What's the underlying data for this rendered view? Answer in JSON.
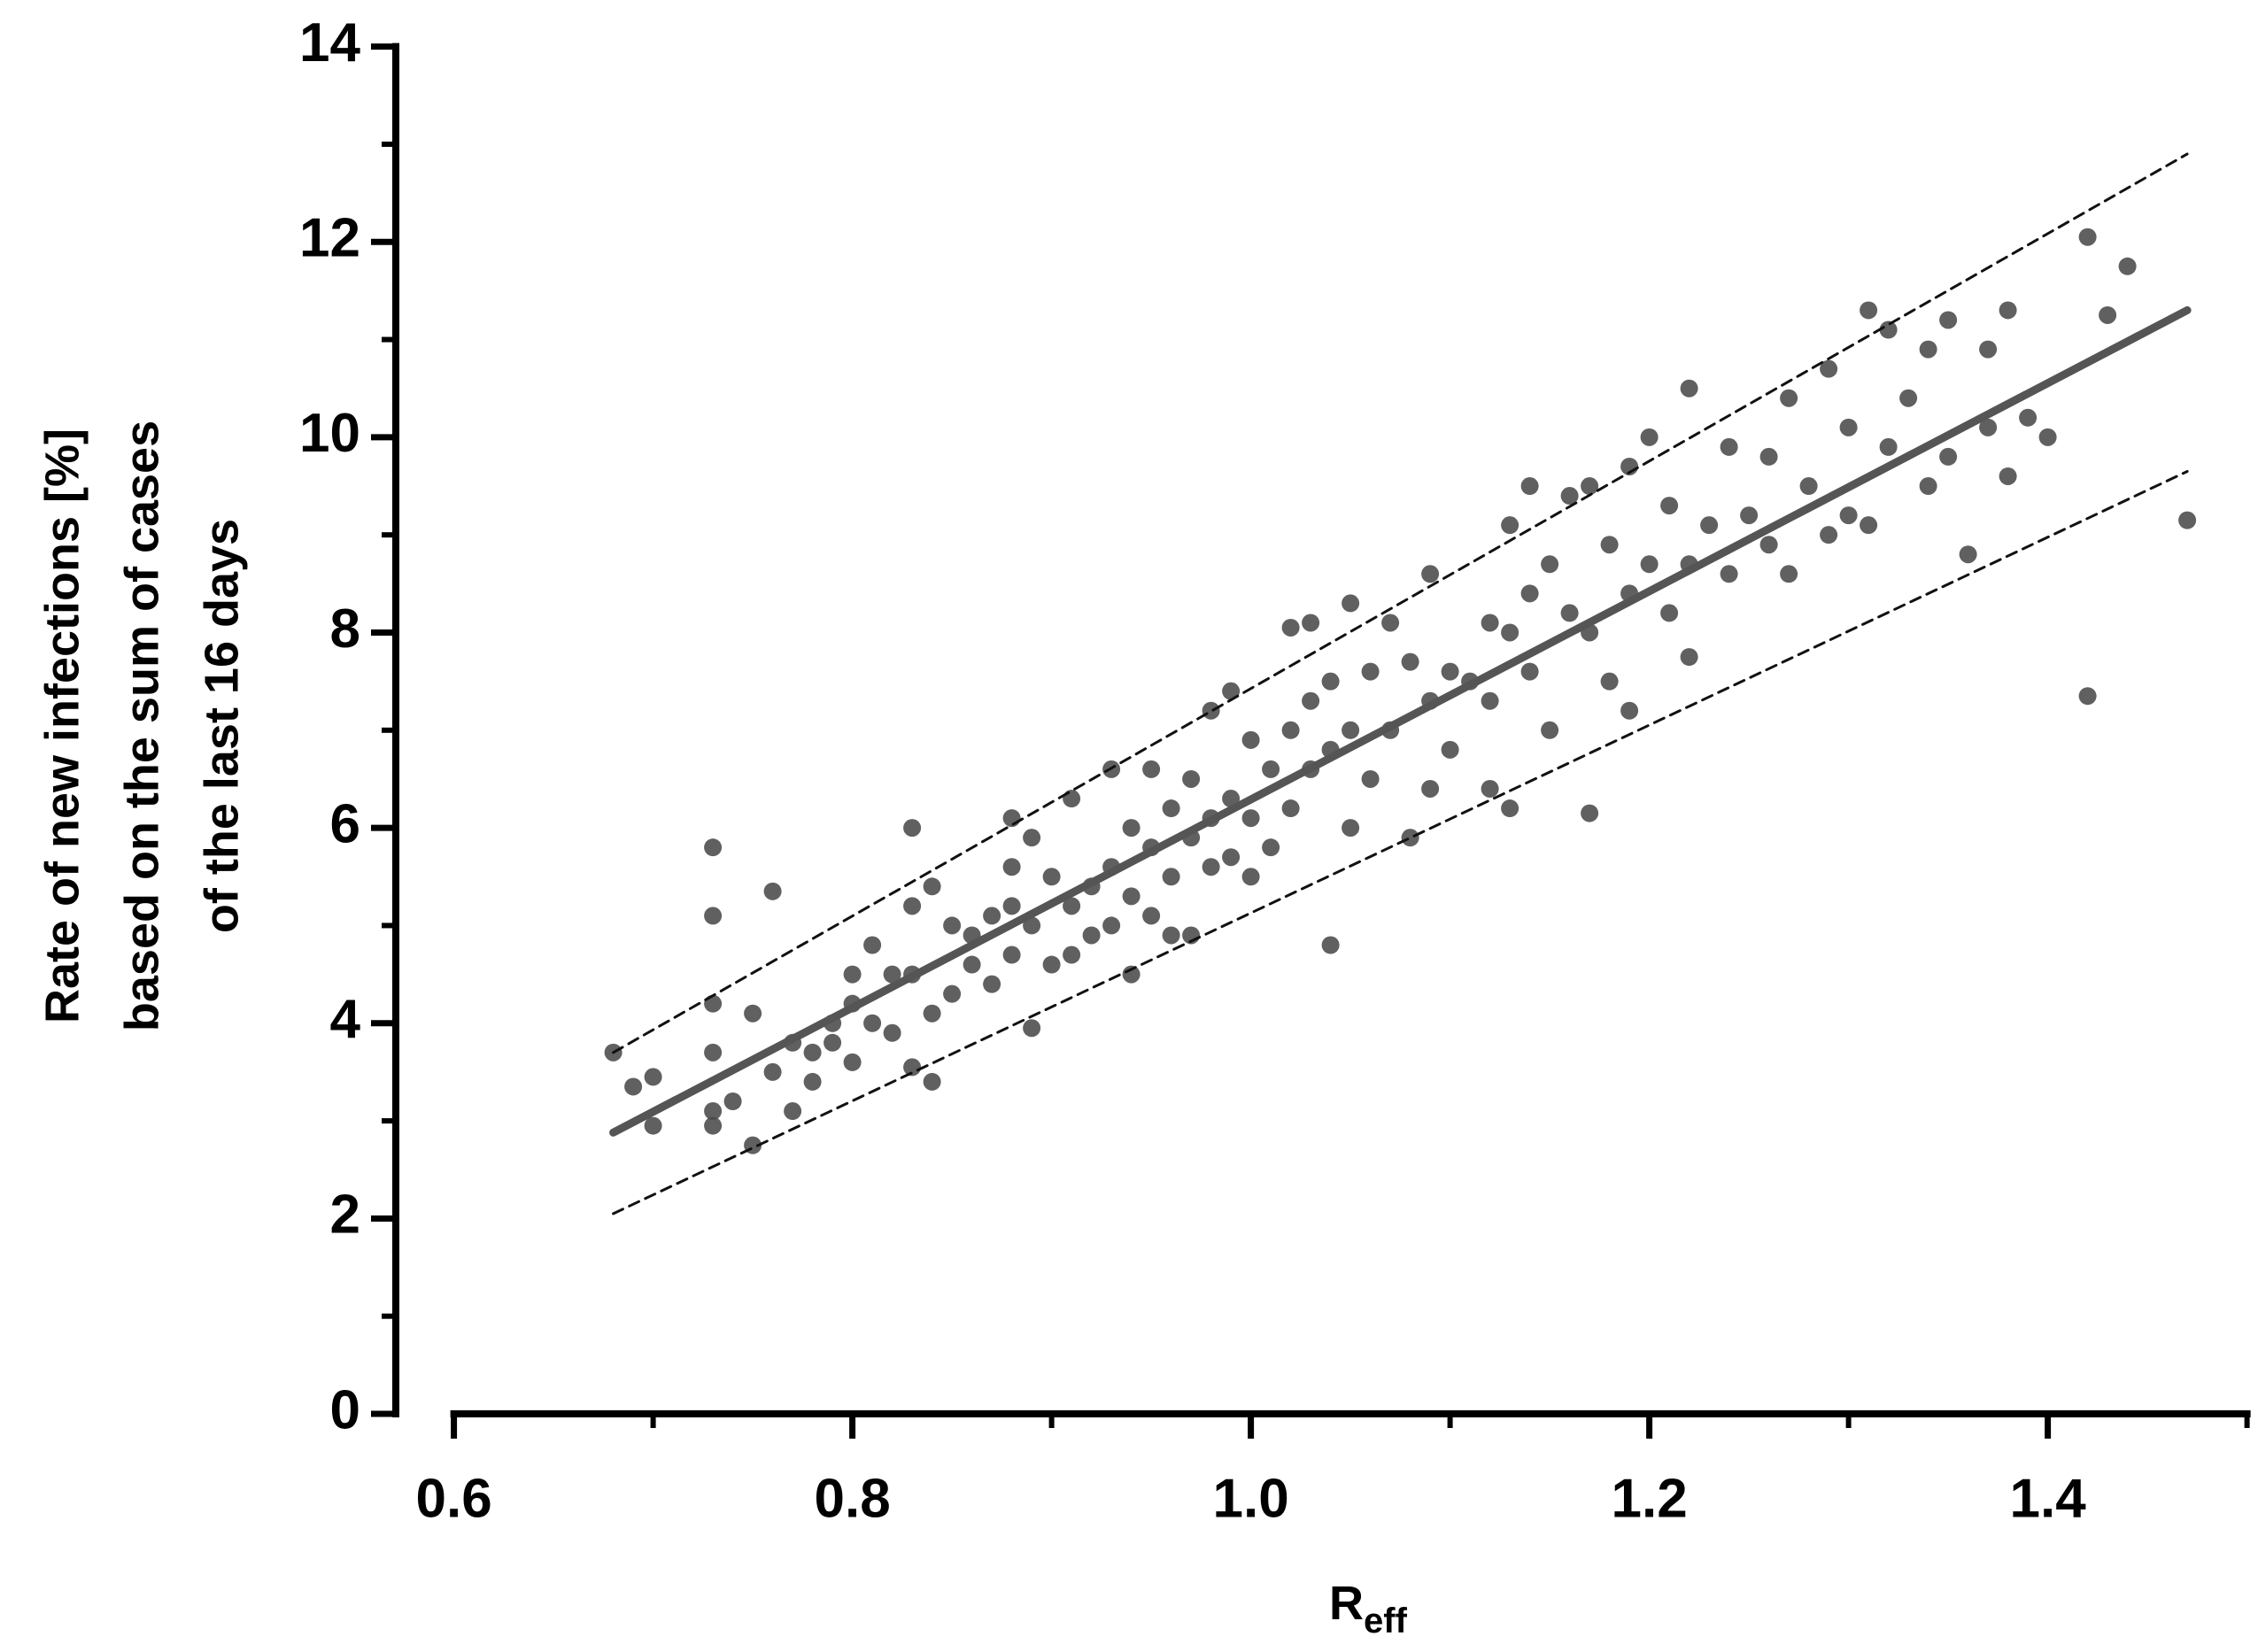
{
  "chart_data": {
    "type": "scatter",
    "y_label": [
      "Rate of new infections [%]",
      "based on the sum of cases",
      "of the last 16 days"
    ],
    "x_label": "R",
    "x_label_sub": "eff",
    "xlim": [
      0.6,
      1.5
    ],
    "ylim": [
      0,
      14
    ],
    "xticks": [
      0.6,
      0.8,
      {
        "value": 1,
        "label": "1.0"
      },
      1.2,
      1.4
    ],
    "xminorticks": [
      0.7,
      0.9,
      1.1,
      1.3,
      1.5
    ],
    "yticks": [
      0,
      2,
      4,
      6,
      8,
      10,
      12,
      14
    ],
    "yminorticks": [
      1,
      3,
      5,
      7,
      9,
      11,
      13
    ],
    "grid": false,
    "series": [
      {
        "type": "scatter",
        "color": "#4a4a4a",
        "x": [
          0.68,
          0.69,
          0.7,
          0.7,
          0.73,
          0.73,
          0.73,
          0.73,
          0.73,
          0.73,
          0.74,
          0.75,
          0.75,
          0.76,
          0.76,
          0.77,
          0.77,
          0.78,
          0.78,
          0.79,
          0.79,
          0.8,
          0.8,
          0.8,
          0.81,
          0.81,
          0.82,
          0.82,
          0.83,
          0.83,
          0.83,
          0.83,
          0.84,
          0.84,
          0.84,
          0.85,
          0.85,
          0.86,
          0.86,
          0.87,
          0.87,
          0.88,
          0.88,
          0.88,
          0.88,
          0.89,
          0.89,
          0.89,
          0.9,
          0.9,
          0.91,
          0.91,
          0.91,
          0.92,
          0.92,
          0.93,
          0.93,
          0.93,
          0.94,
          0.94,
          0.94,
          0.95,
          0.95,
          0.95,
          0.96,
          0.96,
          0.96,
          0.97,
          0.97,
          0.97,
          0.98,
          0.98,
          0.98,
          0.99,
          0.99,
          0.99,
          1.0,
          1.0,
          1.0,
          1.01,
          1.01,
          1.02,
          1.02,
          1.02,
          1.03,
          1.03,
          1.03,
          1.04,
          1.04,
          1.04,
          1.05,
          1.05,
          1.05,
          1.06,
          1.06,
          1.07,
          1.07,
          1.08,
          1.08,
          1.09,
          1.09,
          1.09,
          1.1,
          1.1,
          1.11,
          1.12,
          1.12,
          1.12,
          1.13,
          1.13,
          1.13,
          1.14,
          1.14,
          1.14,
          1.15,
          1.15,
          1.16,
          1.16,
          1.17,
          1.17,
          1.17,
          1.18,
          1.18,
          1.19,
          1.19,
          1.19,
          1.2,
          1.2,
          1.21,
          1.21,
          1.22,
          1.22,
          1.22,
          1.23,
          1.24,
          1.24,
          1.25,
          1.26,
          1.26,
          1.27,
          1.27,
          1.28,
          1.29,
          1.29,
          1.3,
          1.3,
          1.31,
          1.31,
          1.32,
          1.32,
          1.33,
          1.34,
          1.34,
          1.35,
          1.35,
          1.36,
          1.37,
          1.37,
          1.38,
          1.38,
          1.39,
          1.4,
          1.42,
          1.42,
          1.43,
          1.44,
          1.47
        ],
        "values": [
          3.7,
          3.35,
          3.45,
          2.95,
          5.8,
          5.1,
          4.2,
          3.7,
          3.1,
          2.95,
          3.2,
          4.1,
          2.75,
          5.35,
          3.5,
          3.8,
          3.1,
          3.7,
          3.4,
          4.0,
          3.8,
          4.5,
          4.2,
          3.6,
          4.8,
          4.0,
          4.5,
          3.9,
          6.0,
          5.2,
          4.5,
          3.55,
          5.4,
          4.1,
          3.4,
          5.0,
          4.3,
          4.9,
          4.6,
          5.1,
          4.4,
          6.1,
          5.6,
          5.2,
          4.7,
          5.9,
          5.0,
          3.95,
          5.5,
          4.6,
          6.3,
          5.2,
          4.7,
          5.4,
          4.9,
          6.6,
          5.6,
          5.0,
          6.0,
          5.3,
          4.5,
          6.6,
          5.8,
          5.1,
          6.2,
          5.5,
          4.9,
          6.5,
          5.9,
          4.9,
          7.2,
          6.1,
          5.6,
          7.4,
          6.3,
          5.7,
          6.9,
          6.1,
          5.5,
          6.6,
          5.8,
          8.05,
          7.0,
          6.2,
          8.1,
          7.3,
          6.6,
          7.5,
          6.8,
          4.8,
          8.3,
          7.0,
          6.0,
          7.6,
          6.5,
          8.1,
          7.0,
          7.7,
          5.9,
          8.6,
          7.3,
          6.4,
          7.6,
          6.8,
          7.5,
          8.1,
          7.3,
          6.4,
          9.1,
          8.0,
          6.2,
          9.5,
          8.4,
          7.6,
          8.7,
          7.0,
          9.4,
          8.2,
          9.5,
          8.0,
          6.15,
          8.9,
          7.5,
          9.7,
          8.4,
          7.2,
          10.0,
          8.7,
          9.3,
          8.2,
          10.5,
          8.7,
          7.75,
          9.1,
          9.9,
          8.6,
          9.2,
          9.8,
          8.9,
          10.4,
          8.6,
          9.5,
          10.7,
          9.0,
          10.1,
          9.2,
          11.3,
          9.1,
          11.1,
          9.9,
          10.4,
          10.9,
          9.5,
          11.2,
          9.8,
          8.8,
          10.9,
          10.1,
          11.3,
          9.6,
          10.2,
          10.0,
          12.05,
          7.35,
          11.25,
          11.75,
          9.15
        ]
      },
      {
        "type": "line",
        "color": "#555555",
        "x": [
          0.68,
          1.47
        ],
        "values": [
          2.88,
          11.3
        ]
      },
      {
        "type": "dashed",
        "color": "#111111",
        "x": [
          0.68,
          1.47
        ],
        "values": [
          3.7,
          12.9
        ]
      },
      {
        "type": "dashed",
        "color": "#111111",
        "x": [
          0.68,
          1.47
        ],
        "values": [
          2.05,
          9.65
        ]
      }
    ]
  }
}
